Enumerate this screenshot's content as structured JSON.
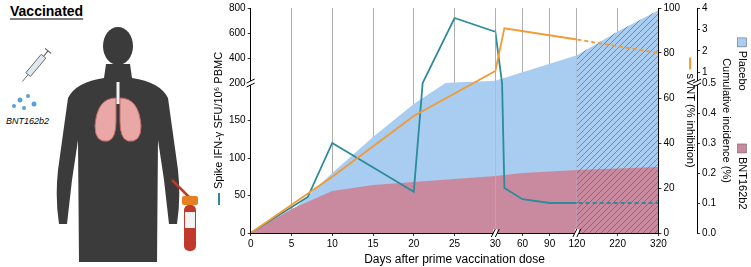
{
  "illustration": {
    "title": "Vaccinated",
    "vaccine": "BNT162b2"
  },
  "chart_data": {
    "type": "line",
    "xlabel": "Days after prime vaccination dose",
    "xlim": [
      0,
      320
    ],
    "xticks": [
      0,
      5,
      10,
      15,
      20,
      25,
      30,
      60,
      90,
      120,
      220,
      320
    ],
    "ylabel": "Spike IFN-γ SFU/10⁶ PBMC",
    "ylim": [
      0,
      800
    ],
    "yticks": [
      0,
      50,
      100,
      150,
      200,
      400,
      600,
      800
    ],
    "y2label": "sVNT (% inhibition)",
    "y2lim": [
      0,
      100
    ],
    "y2ticks": [
      0,
      20,
      40,
      60,
      80,
      100
    ],
    "y3label": "Cumulative incidence (%)",
    "y3lim": [
      0,
      4
    ],
    "y3ticks": [
      {
        "value": 0,
        "label": "0.0"
      },
      0.1,
      0.2,
      0.3,
      0.4,
      0.5,
      1,
      2,
      3,
      4
    ],
    "grid": "x",
    "legend": "right",
    "series": [
      {
        "type": "line",
        "color": "#2b8b9a",
        "axis": "y",
        "x": [
          0,
          7,
          10,
          20,
          25,
          30,
          40,
          60,
          90,
          120,
          320
        ],
        "values": [
          0,
          48,
          120,
          55,
          720,
          610,
          60,
          45,
          40,
          40,
          40
        ]
      },
      {
        "type": "line",
        "color": "#f39a32",
        "axis": "y2",
        "x": [
          0,
          10,
          20,
          30,
          40,
          120,
          320
        ],
        "values": [
          0,
          25,
          52,
          72,
          91,
          86,
          80
        ]
      },
      {
        "type": "area",
        "name": "Placebo",
        "color": "#a8cdf0",
        "axis": "y3",
        "x": [
          0,
          3,
          10,
          15,
          20,
          25,
          30,
          60,
          90,
          120,
          220,
          320
        ],
        "values": [
          0,
          0.02,
          0.2,
          0.32,
          0.43,
          0.52,
          0.6,
          1.0,
          1.4,
          1.8,
          2.9,
          3.9
        ]
      },
      {
        "type": "area",
        "name": "BNT162b2",
        "color": "#c98aa0",
        "axis": "y3",
        "x": [
          0,
          5,
          10,
          15,
          20,
          30,
          60,
          120,
          220,
          320
        ],
        "values": [
          0,
          0.08,
          0.14,
          0.16,
          0.17,
          0.19,
          0.2,
          0.21,
          0.215,
          0.22
        ]
      }
    ]
  }
}
